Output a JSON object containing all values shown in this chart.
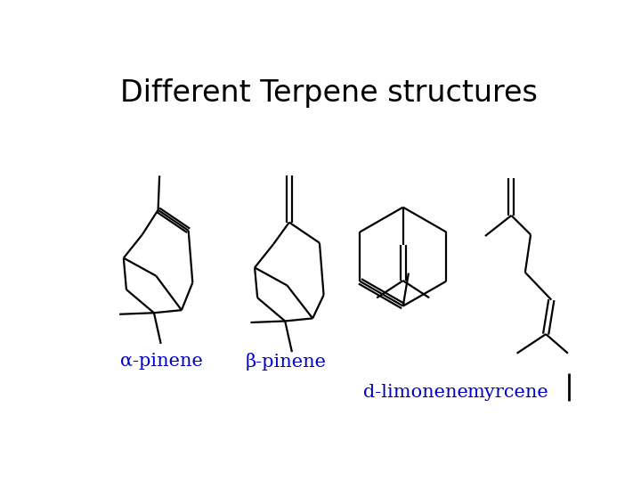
{
  "title": "Different Terpene structures",
  "title_fontsize": 24,
  "title_color": "#000000",
  "bg_color": "#ffffff",
  "label_color": "#0000cc",
  "label_fontsize": 15,
  "labels": [
    "α-pinene",
    "β-pinene",
    "d-limonene",
    "myrcene"
  ]
}
